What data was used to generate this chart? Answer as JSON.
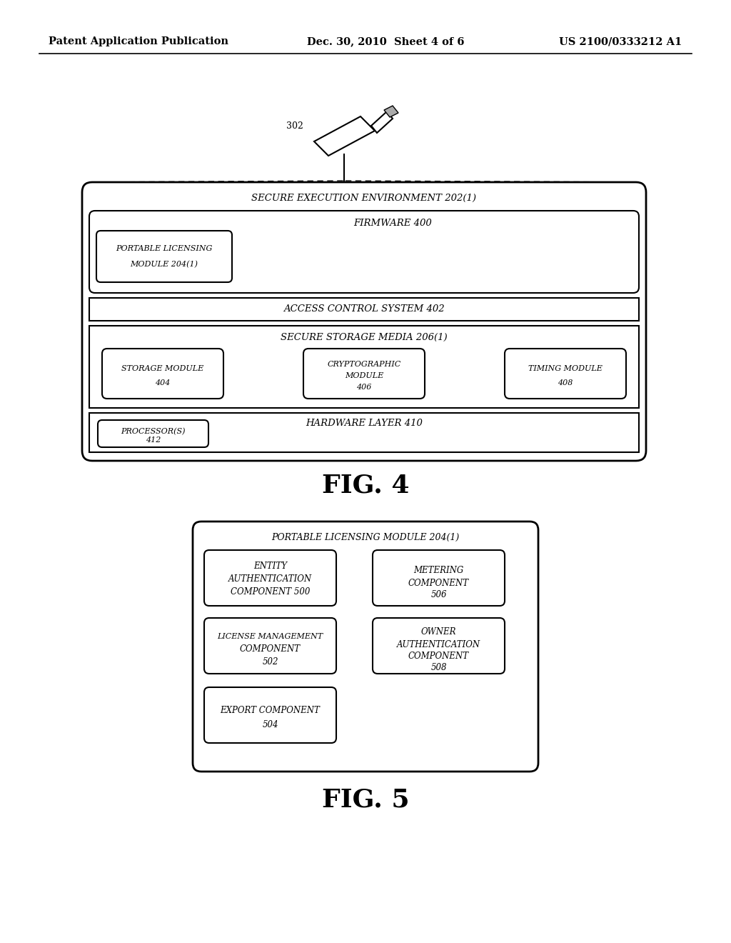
{
  "bg_color": "#ffffff",
  "header_left": "Patent Application Publication",
  "header_center": "Dec. 30, 2010  Sheet 4 of 6",
  "header_right": "US 2100/0333212 A1",
  "fig4_label": "FIG. 4",
  "fig5_label": "FIG. 5",
  "fig4_title_1": "S",
  "fig4_title": "ECURE EXECUTION ENVIRONMENT 202(1)",
  "firmware_label": "FIRMWARE 400",
  "plm_line1": "PORTABLE LICENSING",
  "plm_line2": "MODULE 204(1)",
  "acs_label": "ACCESS CONTROL SYSTEM 402",
  "ssm_label": "SECURE STORAGE MEDIA 206(1)",
  "storage_line1": "STORAGE MODULE",
  "storage_line2": "404",
  "crypto_line1": "CRYPTOGRAPHIC",
  "crypto_line2": "MODULE",
  "crypto_line3": "406",
  "timing_line1": "TIMING MODULE",
  "timing_line2": "408",
  "hw_label": "HARDWARE LAYER 410",
  "proc_line1": "PROCESSOR(S)",
  "proc_line2": "412",
  "usb_label": "302",
  "fig5_outer_title": "PORTABLE LICENSING MODULE 204(1)",
  "entity_line1": "ENTITY",
  "entity_line2": "AUTHENTICATION",
  "entity_line3": "COMPONENT 500",
  "metering_line1": "METERING",
  "metering_line2": "COMPONENT",
  "metering_line3": "506",
  "lm_line1": "LICENSE MANAGEMENT",
  "lm_line2": "COMPONENT",
  "lm_line3": "502",
  "owner_line1": "OWNER",
  "owner_line2": "AUTHENTICATION",
  "owner_line3": "COMPONENT",
  "owner_line4": "508",
  "export_line1": "EXPORT COMPONENT",
  "export_line2": "504"
}
